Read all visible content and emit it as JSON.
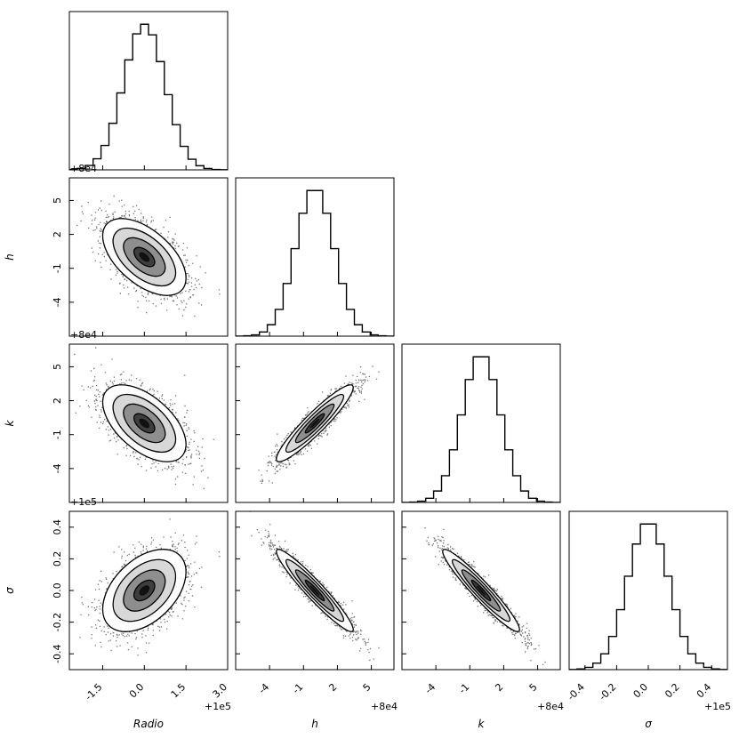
{
  "chart_data": {
    "type": "scatter",
    "subtype": "corner-plot",
    "title": "",
    "parameters": [
      {
        "label": "Radio",
        "offset_label": "+1e5",
        "range": [
          -2.7,
          3.0
        ],
        "mean": 0.0,
        "std": 0.75,
        "ticks": [
          -1.5,
          0.0,
          1.5,
          3.0
        ],
        "tick_labels": [
          "-1.5",
          "0.0",
          "1.5",
          "3.0"
        ]
      },
      {
        "label": "h",
        "offset_label": "+8e4",
        "range": [
          -7.0,
          7.0
        ],
        "mean": 0.0,
        "std": 1.7,
        "ticks": [
          -4,
          -1,
          2,
          5
        ],
        "tick_labels": [
          "-4",
          "-1",
          "2",
          "5"
        ]
      },
      {
        "label": "k",
        "offset_label": "+8e4",
        "range": [
          -7.0,
          7.0
        ],
        "mean": 0.0,
        "std": 1.7,
        "ticks": [
          -4,
          -1,
          2,
          5
        ],
        "tick_labels": [
          "-4",
          "-1",
          "2",
          "5"
        ]
      },
      {
        "label": "σ",
        "offset_label": "+1e5",
        "range": [
          -0.5,
          0.5
        ],
        "mean": 0.0,
        "std": 0.13,
        "ticks": [
          -0.4,
          -0.2,
          0.0,
          0.2,
          0.4
        ],
        "tick_labels": [
          "-0.4",
          "-0.2",
          "0.0",
          "0.2",
          "0.4"
        ]
      }
    ],
    "correlations": [
      {
        "pair": [
          "h",
          "Radio"
        ],
        "rho": -0.55
      },
      {
        "pair": [
          "k",
          "Radio"
        ],
        "rho": -0.55
      },
      {
        "pair": [
          "k",
          "h"
        ],
        "rho": 0.93
      },
      {
        "pair": [
          "σ",
          "Radio"
        ],
        "rho": 0.45
      },
      {
        "pair": [
          "σ",
          "h"
        ],
        "rho": -0.95
      },
      {
        "pair": [
          "σ",
          "k"
        ],
        "rho": -0.95
      }
    ],
    "histogram_bins": 20,
    "contour_levels_sigma": [
      0.5,
      1.0,
      1.5,
      2.0
    ],
    "grid": false,
    "legend": "none",
    "colors": {
      "points": "#000000",
      "contour_fill_dark": "#111111",
      "axes": "#000000"
    }
  }
}
